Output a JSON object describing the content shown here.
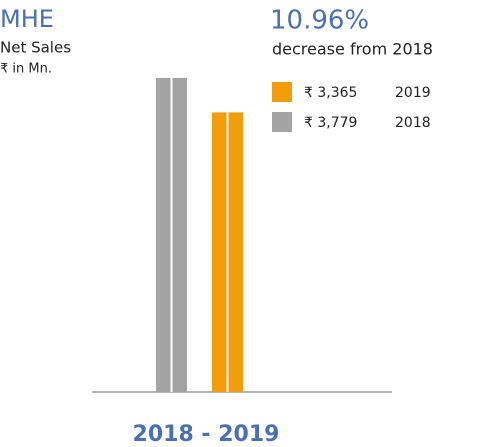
{
  "chart_data": {
    "type": "bar",
    "title": "MHE",
    "subtitle": "Net Sales",
    "unit_label": "₹ in Mn.",
    "annotation": {
      "value": "10.96%",
      "text": "decrease from 2018"
    },
    "xlabel": "2018 - 2019",
    "series": [
      {
        "name": "2018",
        "color": "#a3a3a3",
        "values": [
          3779
        ],
        "value_labels": [
          "₹ 3,779"
        ]
      },
      {
        "name": "2019",
        "color": "#f29d0c",
        "values": [
          3365
        ],
        "value_labels": [
          "₹ 3,365"
        ]
      }
    ]
  }
}
